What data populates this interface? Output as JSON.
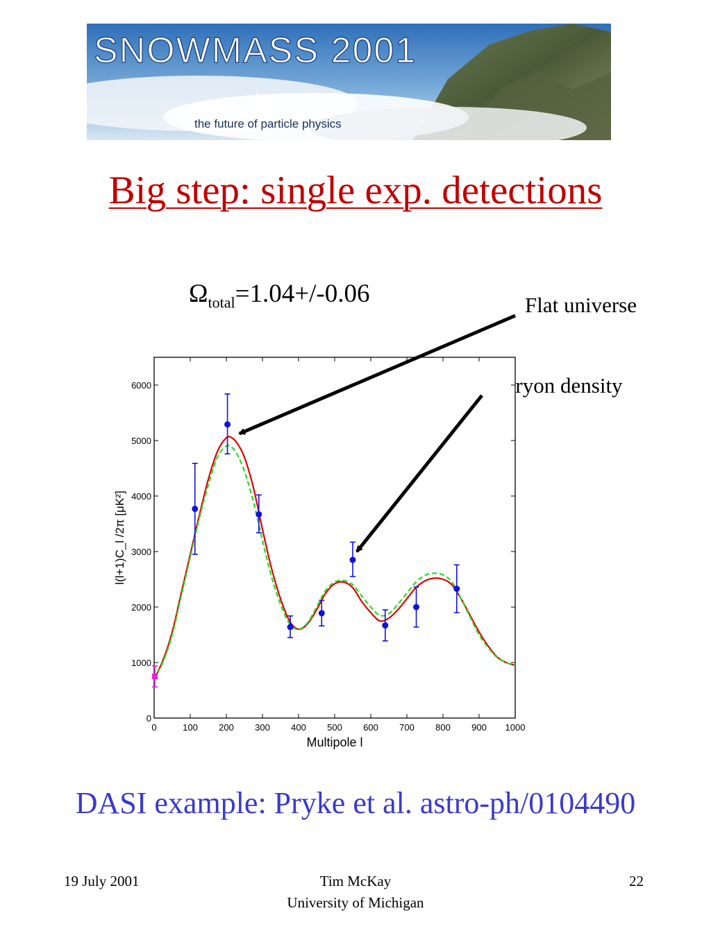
{
  "banner": {
    "title": "SNOWMASS 2001",
    "tagline": "the future of particle physics"
  },
  "slide": {
    "title": "Big step: single exp. detections",
    "omega_symbol": "Ω",
    "omega_sub": "total",
    "omega_value": "=1.04+/-0.06",
    "annotation_flat": "Flat universe",
    "annotation_baryon": "Baryon density",
    "caption": "DASI example: Pryke et al. astro-ph/0104490"
  },
  "footer": {
    "date": "19 July 2001",
    "author": "Tim McKay",
    "institution": "University of Michigan",
    "page": "22"
  },
  "colors": {
    "title": "#c00000",
    "caption": "#3a3acc",
    "data_points": "#1010e0",
    "first_point": "#e020e0",
    "model_solid": "#e00000",
    "model_dashed": "#22dd22"
  },
  "chart_data": {
    "type": "scatter",
    "xlabel": "Multipole l",
    "ylabel": "l(l+1)C_l /2π  [μK²]",
    "xlim": [
      0,
      1000
    ],
    "ylim": [
      0,
      6500
    ],
    "xticks": [
      "0",
      "100",
      "200",
      "300",
      "400",
      "500",
      "600",
      "700",
      "800",
      "900",
      "1000"
    ],
    "yticks": [
      "0",
      "1000",
      "2000",
      "3000",
      "4000",
      "5000",
      "6000"
    ],
    "grid": false,
    "points": {
      "x": [
        2,
        113,
        203,
        290,
        377,
        464,
        550,
        640,
        726,
        838
      ],
      "y": [
        750,
        3770,
        5290,
        3670,
        1640,
        1890,
        2850,
        1670,
        2000,
        2330
      ],
      "err_low": [
        190,
        820,
        530,
        330,
        190,
        230,
        300,
        280,
        360,
        430
      ],
      "err_high": [
        190,
        820,
        550,
        350,
        200,
        230,
        320,
        280,
        360,
        430
      ]
    },
    "series": [
      {
        "style": "solid",
        "x": [
          0,
          25,
          50,
          75,
          100,
          125,
          150,
          175,
          200,
          215,
          230,
          250,
          275,
          300,
          325,
          350,
          375,
          400,
          425,
          450,
          475,
          500,
          525,
          550,
          575,
          600,
          625,
          650,
          675,
          700,
          725,
          750,
          775,
          800,
          825,
          850,
          875,
          900,
          925,
          950,
          975,
          1000
        ],
        "y": [
          700,
          1050,
          1550,
          2250,
          2950,
          3650,
          4300,
          4800,
          5050,
          5050,
          4950,
          4700,
          4150,
          3400,
          2700,
          2150,
          1750,
          1600,
          1700,
          1950,
          2250,
          2420,
          2450,
          2350,
          2100,
          1900,
          1750,
          1800,
          1950,
          2150,
          2350,
          2470,
          2520,
          2500,
          2400,
          2150,
          1850,
          1550,
          1300,
          1100,
          1000,
          950
        ]
      },
      {
        "style": "dashed",
        "x": [
          0,
          25,
          50,
          75,
          100,
          125,
          150,
          175,
          200,
          215,
          230,
          250,
          275,
          300,
          325,
          350,
          375,
          400,
          425,
          450,
          475,
          500,
          525,
          550,
          575,
          600,
          625,
          650,
          675,
          700,
          725,
          750,
          775,
          800,
          825,
          850,
          875,
          900,
          925,
          950,
          975,
          1000
        ],
        "y": [
          700,
          1020,
          1500,
          2200,
          2900,
          3600,
          4200,
          4700,
          4900,
          4880,
          4750,
          4450,
          3900,
          3200,
          2550,
          2050,
          1700,
          1600,
          1720,
          2000,
          2300,
          2450,
          2480,
          2400,
          2200,
          2000,
          1850,
          1880,
          2050,
          2250,
          2450,
          2570,
          2610,
          2580,
          2450,
          2150,
          1820,
          1500,
          1270,
          1090,
          1000,
          960
        ]
      }
    ]
  }
}
